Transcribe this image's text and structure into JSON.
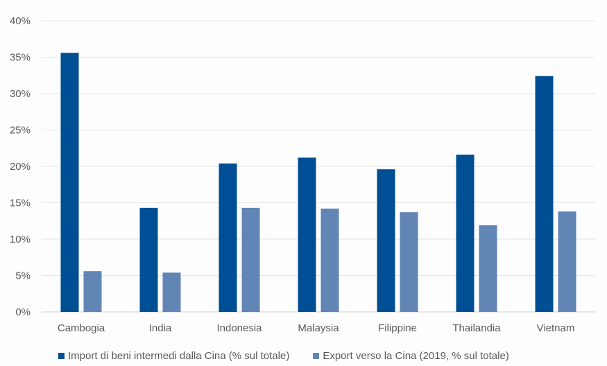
{
  "chart_data": {
    "type": "bar",
    "categories": [
      "Cambogia",
      "India",
      "Indonesia",
      "Malaysia",
      "Filippine",
      "Thailandia",
      "Vietnam"
    ],
    "series": [
      {
        "name": "Import di beni intermedi dalla Cina (% sul totale)",
        "values": [
          35.6,
          14.3,
          20.4,
          21.2,
          19.6,
          21.6,
          32.4
        ],
        "color": "#004f94"
      },
      {
        "name": "Export verso la Cina (2019, % sul totale)",
        "values": [
          5.6,
          5.4,
          14.3,
          14.2,
          13.7,
          11.9,
          13.8
        ],
        "color": "#6185b5"
      }
    ],
    "ylim": [
      0,
      40
    ],
    "yticks": [
      "0%",
      "5%",
      "10%",
      "15%",
      "20%",
      "25%",
      "30%",
      "35%",
      "40%"
    ],
    "grid": true,
    "legend_position": "bottom"
  }
}
